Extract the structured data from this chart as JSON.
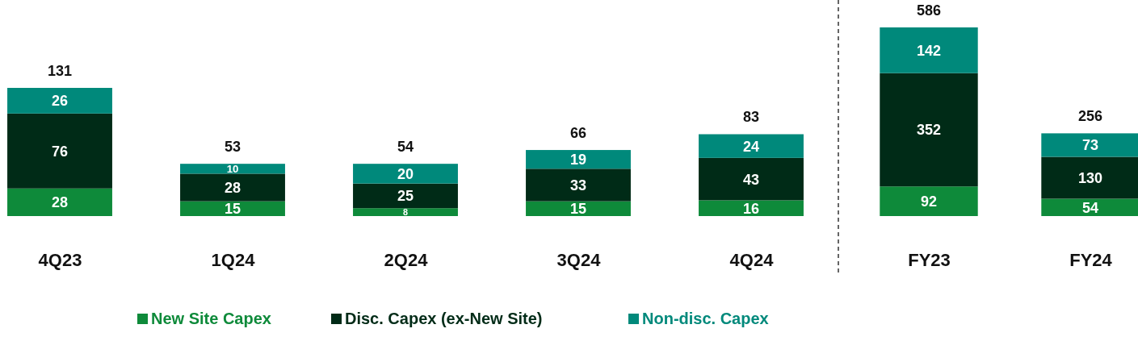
{
  "chart_data": [
    {
      "type": "bar",
      "stacked": true,
      "categories": [
        "4Q23",
        "1Q24",
        "2Q24",
        "3Q24",
        "4Q24"
      ],
      "series": [
        {
          "name": "New Site Capex",
          "color": "#0e8a3a",
          "values": [
            28,
            15,
            8,
            15,
            16
          ]
        },
        {
          "name": "Disc. Capex (ex-New Site)",
          "color": "#002b17",
          "values": [
            76,
            28,
            25,
            33,
            43
          ]
        },
        {
          "name": "Non-disc. Capex",
          "color": "#00897b",
          "values": [
            26,
            10,
            20,
            19,
            24
          ]
        }
      ],
      "data_labels": true,
      "totals": [
        "131",
        "53",
        "54",
        "66",
        "83"
      ],
      "legend": "bottom"
    },
    {
      "type": "bar",
      "stacked": true,
      "categories": [
        "FY23",
        "FY24"
      ],
      "series": [
        {
          "color": "#0e8a3a",
          "values": [
            92,
            54
          ]
        },
        {
          "color": "#002b17",
          "values": [
            352,
            130
          ]
        },
        {
          "color": "#00897b",
          "values": [
            142,
            73
          ]
        }
      ],
      "data_labels": true,
      "totals": [
        "586",
        "256"
      ],
      "legend": false
    }
  ]
}
